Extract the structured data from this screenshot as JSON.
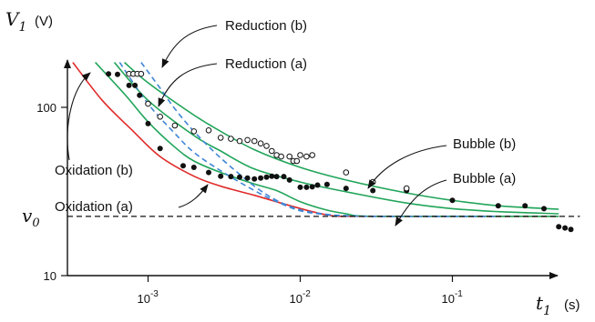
{
  "chart_data": {
    "type": "scatter",
    "x_scale": "log",
    "y_scale": "log",
    "xlim": [
      0.0003,
      0.6
    ],
    "ylim": [
      10,
      220
    ],
    "xlabel": {
      "symbol": "t",
      "subscript": "1",
      "unit": "(s)"
    },
    "ylabel": {
      "symbol": "V",
      "subscript": "1",
      "unit": "(V)"
    },
    "x_ticks": [
      {
        "value": 0.001,
        "label_base": "10",
        "label_exp": "-3"
      },
      {
        "value": 0.01,
        "label_base": "10",
        "label_exp": "-2"
      },
      {
        "value": 0.1,
        "label_base": "10",
        "label_exp": "-1"
      }
    ],
    "y_ticks": [
      {
        "value": 100,
        "label": "100"
      },
      {
        "value": 10,
        "label": "10"
      }
    ],
    "reference_line": {
      "value": 22.5,
      "symbol": "v",
      "subscript": "0",
      "style": "dashed"
    },
    "colors": {
      "oxidation": "#e02a2a",
      "bubble": "#21a55a",
      "reduction": "#3f86d6",
      "points": "#111111"
    },
    "series": [
      {
        "name": "Oxidation (a)",
        "kind": "curve",
        "color": "#e02a2a",
        "style": "solid",
        "x": [
          0.00032,
          0.0005,
          0.0008,
          0.0012,
          0.002,
          0.003,
          0.005,
          0.008,
          0.012,
          0.016,
          0.02,
          0.05,
          0.1,
          0.2,
          0.5
        ],
        "y": [
          185,
          110,
          72,
          51,
          39,
          34,
          30,
          26.5,
          24,
          22.7,
          22.5,
          22.5,
          22.5,
          22.5,
          22.5
        ]
      },
      {
        "name": "Oxidation (b)",
        "kind": "curve",
        "color": "#21a55a",
        "style": "solid",
        "x": [
          0.00045,
          0.0007,
          0.001,
          0.0015,
          0.002,
          0.003,
          0.005,
          0.007,
          0.01,
          0.015,
          0.02,
          0.025,
          0.05,
          0.1,
          0.5
        ],
        "y": [
          185,
          120,
          82,
          58,
          48,
          41,
          35,
          32,
          27.5,
          24.5,
          23.3,
          22.6,
          22.5,
          22.5,
          22.5
        ]
      },
      {
        "name": "Bubble (a)",
        "kind": "curve",
        "color": "#21a55a",
        "style": "solid",
        "x": [
          0.0006,
          0.001,
          0.002,
          0.003,
          0.005,
          0.01,
          0.02,
          0.05,
          0.1,
          0.2,
          0.5
        ],
        "y": [
          185,
          110,
          68,
          55,
          43,
          36,
          31.5,
          27,
          25,
          24,
          23.3
        ]
      },
      {
        "name": "Bubble (b)",
        "kind": "curve",
        "color": "#21a55a",
        "style": "solid",
        "x": [
          0.0007,
          0.001,
          0.002,
          0.003,
          0.005,
          0.01,
          0.02,
          0.05,
          0.1,
          0.2,
          0.5
        ],
        "y": [
          185,
          140,
          90,
          72,
          56,
          44,
          37,
          31,
          28,
          26,
          24.8
        ]
      },
      {
        "name": "Reduction (a)",
        "kind": "curve",
        "color": "#3f86d6",
        "style": "dashed",
        "x": [
          0.00065,
          0.001,
          0.0015,
          0.002,
          0.003,
          0.005,
          0.007,
          0.01,
          0.015,
          0.02,
          0.03,
          0.05,
          0.2
        ],
        "y": [
          185,
          105,
          70,
          54,
          42,
          32,
          27.5,
          24.3,
          23,
          22.6,
          22.5,
          22.5,
          22.5
        ]
      },
      {
        "name": "Reduction (b)",
        "kind": "curve",
        "color": "#3f86d6",
        "style": "dashed",
        "x": [
          0.0009,
          0.0012,
          0.0015,
          0.002,
          0.003,
          0.005,
          0.007,
          0.01,
          0.015,
          0.02,
          0.03,
          0.05,
          0.2
        ],
        "y": [
          185,
          130,
          98,
          72,
          50,
          34,
          28,
          24.6,
          23.1,
          22.7,
          22.5,
          22.5,
          22.5
        ]
      },
      {
        "name": "Filled data points",
        "kind": "points",
        "marker": "filled",
        "color": "#111111",
        "x": [
          0.00055,
          0.00063,
          0.00075,
          0.00082,
          0.00088,
          0.001,
          0.0012,
          0.0017,
          0.002,
          0.0025,
          0.003,
          0.0035,
          0.004,
          0.0045,
          0.005,
          0.0055,
          0.006,
          0.0065,
          0.007,
          0.0078,
          0.0085,
          0.01,
          0.011,
          0.012,
          0.013,
          0.015,
          0.02,
          0.03,
          0.05,
          0.1,
          0.2,
          0.3,
          0.4,
          0.5,
          0.55,
          0.6
        ],
        "y": [
          158,
          157,
          135,
          135,
          118,
          80,
          57,
          45,
          44,
          41,
          39,
          38.8,
          38.5,
          38,
          37.5,
          38,
          38.5,
          39,
          38.8,
          38.8,
          37,
          33.5,
          33.5,
          33.7,
          34.5,
          34.8,
          33,
          32,
          32,
          28,
          26,
          26,
          25,
          19.5,
          19.2,
          18.8
        ]
      },
      {
        "name": "Open data points",
        "kind": "points",
        "marker": "open",
        "color": "#111111",
        "x": [
          0.00075,
          0.0008,
          0.00085,
          0.0009,
          0.001,
          0.0012,
          0.0015,
          0.002,
          0.0025,
          0.003,
          0.0035,
          0.004,
          0.0045,
          0.005,
          0.0055,
          0.006,
          0.0065,
          0.007,
          0.0075,
          0.0085,
          0.009,
          0.0095,
          0.01,
          0.011,
          0.012,
          0.02,
          0.03,
          0.05
        ],
        "y": [
          158,
          158,
          158,
          158,
          105,
          88,
          78,
          72,
          73,
          66,
          65,
          63,
          64,
          63,
          61,
          59,
          55,
          52,
          51,
          51,
          48,
          48,
          52,
          51,
          52,
          41,
          36,
          33
        ]
      }
    ],
    "annotations": [
      {
        "text": "Reduction (b)",
        "target": [
          0.0009,
          190
        ]
      },
      {
        "text": "Reduction (a)",
        "target": [
          0.00082,
          120
        ]
      },
      {
        "text": "Bubble (b)",
        "target": [
          0.022,
          39
        ]
      },
      {
        "text": "Bubble (a)",
        "target": [
          0.041,
          33.5
        ]
      },
      {
        "text": "Oxidation (b)",
        "target": [
          0.00075,
          170
        ]
      },
      {
        "text": "Oxidation (a)",
        "target": [
          0.0019,
          44
        ]
      }
    ]
  }
}
